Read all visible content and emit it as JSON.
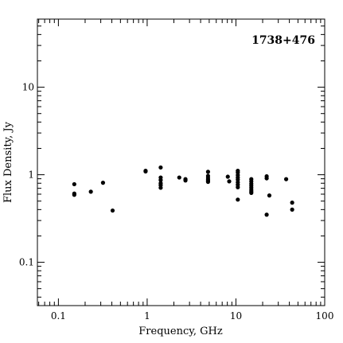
{
  "chart_data": {
    "type": "scatter",
    "title": "",
    "annotation": "1738+476",
    "xlabel": "Frequency, GHz",
    "ylabel": "Flux Density, Jy",
    "xscale": "log",
    "yscale": "log",
    "xlim": [
      0.058,
      100
    ],
    "ylim": [
      0.032,
      60
    ],
    "xticks": [
      0.1,
      1,
      10,
      100
    ],
    "xtick_labels": [
      "0.1",
      "1",
      "10",
      "100"
    ],
    "yticks": [
      0.1,
      1,
      10
    ],
    "ytick_labels": [
      "0.1",
      "1",
      "10"
    ],
    "grid": false,
    "legend": "none",
    "marker_color": "#000000",
    "series": [
      {
        "points": [
          [
            0.151,
            0.78
          ],
          [
            0.151,
            0.61
          ],
          [
            0.151,
            0.59
          ],
          [
            0.232,
            0.64
          ],
          [
            0.318,
            0.81
          ],
          [
            0.408,
            0.39
          ],
          [
            0.96,
            1.09
          ],
          [
            0.96,
            1.11
          ],
          [
            1.42,
            1.21
          ],
          [
            1.42,
            0.93
          ],
          [
            1.42,
            0.87
          ],
          [
            1.42,
            0.8
          ],
          [
            1.42,
            0.76
          ],
          [
            1.42,
            0.71
          ],
          [
            2.3,
            0.93
          ],
          [
            2.7,
            0.89
          ],
          [
            2.7,
            0.86
          ],
          [
            4.85,
            1.08
          ],
          [
            4.85,
            0.97
          ],
          [
            4.85,
            0.92
          ],
          [
            4.85,
            0.88
          ],
          [
            4.85,
            0.85
          ],
          [
            4.85,
            0.83
          ],
          [
            8.1,
            0.95
          ],
          [
            8.4,
            0.84
          ],
          [
            10.5,
            1.11
          ],
          [
            10.5,
            1.06
          ],
          [
            10.5,
            0.99
          ],
          [
            10.5,
            0.93
          ],
          [
            10.5,
            0.88
          ],
          [
            10.5,
            0.82
          ],
          [
            10.5,
            0.77
          ],
          [
            10.5,
            0.72
          ],
          [
            10.5,
            0.52
          ],
          [
            14.9,
            0.89
          ],
          [
            14.9,
            0.84
          ],
          [
            14.9,
            0.79
          ],
          [
            14.9,
            0.75
          ],
          [
            14.9,
            0.71
          ],
          [
            14.9,
            0.67
          ],
          [
            14.9,
            0.64
          ],
          [
            14.9,
            0.62
          ],
          [
            22.2,
            0.96
          ],
          [
            22.2,
            0.91
          ],
          [
            22.2,
            0.35
          ],
          [
            23.8,
            0.58
          ],
          [
            36.8,
            0.89
          ],
          [
            43,
            0.48
          ],
          [
            43,
            0.4
          ]
        ]
      }
    ]
  }
}
